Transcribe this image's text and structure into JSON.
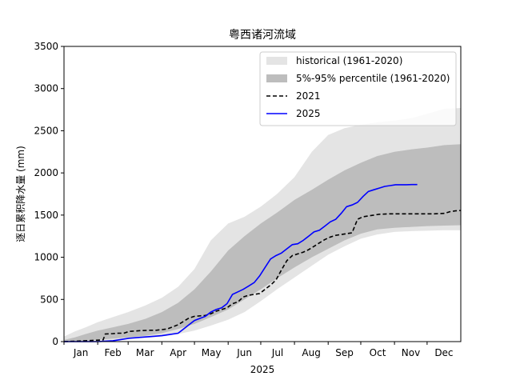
{
  "chart_data": {
    "type": "area",
    "title": "粤西诸河流域",
    "xlabel": "2025",
    "ylabel": "逐日累积降水量 (mm)",
    "ylim": [
      0,
      3500
    ],
    "xlim": [
      0,
      365
    ],
    "yticks": [
      0,
      500,
      1000,
      1500,
      2000,
      2500,
      3000,
      3500
    ],
    "month_labels": [
      "Jan",
      "Feb",
      "Mar",
      "Apr",
      "May",
      "Jun",
      "Jul",
      "Aug",
      "Sep",
      "Oct",
      "Nov",
      "Dec"
    ],
    "month_starts": [
      0,
      31,
      59,
      90,
      120,
      151,
      181,
      212,
      243,
      273,
      304,
      334
    ],
    "legend_position": "top-right",
    "series": [
      {
        "name": "historical (1961-2020)",
        "kind": "band",
        "color": "#e4e4e4",
        "x": [
          0,
          10,
          20,
          31,
          45,
          59,
          75,
          90,
          105,
          120,
          135,
          151,
          166,
          181,
          196,
          212,
          228,
          243,
          258,
          273,
          288,
          304,
          320,
          334,
          350,
          365
        ],
        "lower": [
          0,
          0,
          5,
          10,
          20,
          30,
          45,
          60,
          90,
          130,
          190,
          260,
          350,
          480,
          620,
          760,
          900,
          1030,
          1130,
          1220,
          1270,
          1300,
          1310,
          1315,
          1320,
          1320
        ],
        "upper": [
          60,
          120,
          170,
          230,
          290,
          350,
          430,
          520,
          650,
          860,
          1200,
          1400,
          1480,
          1600,
          1750,
          1950,
          2250,
          2450,
          2530,
          2570,
          2600,
          2620,
          2650,
          2700,
          2760,
          2770
        ]
      },
      {
        "name": "5%-95% percentile (1961-2020)",
        "kind": "band",
        "color": "#bdbdbd",
        "x": [
          0,
          10,
          20,
          31,
          45,
          59,
          75,
          90,
          105,
          120,
          135,
          151,
          166,
          181,
          196,
          212,
          228,
          243,
          258,
          273,
          288,
          304,
          320,
          334,
          350,
          365
        ],
        "lower": [
          0,
          0,
          10,
          20,
          35,
          50,
          70,
          100,
          150,
          210,
          290,
          380,
          500,
          620,
          750,
          880,
          1000,
          1100,
          1200,
          1280,
          1330,
          1350,
          1360,
          1370,
          1375,
          1380
        ],
        "upper": [
          20,
          50,
          90,
          130,
          170,
          210,
          270,
          350,
          460,
          620,
          830,
          1080,
          1250,
          1400,
          1530,
          1680,
          1800,
          1920,
          2030,
          2120,
          2200,
          2250,
          2280,
          2300,
          2330,
          2340
        ]
      },
      {
        "name": "2021",
        "kind": "line",
        "style": "dashed",
        "color": "#000000",
        "x": [
          0,
          10,
          20,
          36,
          38,
          45,
          50,
          55,
          60,
          70,
          80,
          85,
          95,
          105,
          110,
          115,
          120,
          130,
          135,
          140,
          145,
          150,
          155,
          160,
          165,
          170,
          175,
          180,
          185,
          190,
          195,
          200,
          205,
          210,
          215,
          220,
          225,
          230,
          235,
          240,
          245,
          250,
          255,
          260,
          265,
          270,
          275,
          280,
          285,
          290,
          300,
          310,
          320,
          330,
          340,
          350,
          355,
          360,
          365
        ],
        "y": [
          0,
          5,
          10,
          20,
          90,
          95,
          100,
          100,
          120,
          130,
          135,
          135,
          150,
          200,
          240,
          280,
          300,
          310,
          330,
          360,
          380,
          400,
          450,
          470,
          530,
          550,
          560,
          570,
          620,
          670,
          730,
          850,
          960,
          1020,
          1040,
          1060,
          1090,
          1130,
          1170,
          1210,
          1240,
          1260,
          1270,
          1280,
          1290,
          1450,
          1480,
          1490,
          1500,
          1510,
          1515,
          1515,
          1515,
          1515,
          1515,
          1520,
          1540,
          1550,
          1555
        ]
      },
      {
        "name": "2025",
        "kind": "line",
        "style": "solid",
        "color": "#0000ff",
        "x": [
          0,
          20,
          31,
          45,
          50,
          60,
          70,
          80,
          90,
          95,
          105,
          110,
          115,
          120,
          130,
          135,
          140,
          145,
          150,
          155,
          160,
          165,
          170,
          175,
          180,
          185,
          190,
          195,
          200,
          205,
          210,
          215,
          220,
          225,
          230,
          235,
          240,
          245,
          250,
          255,
          260,
          265,
          270,
          275,
          280,
          285,
          290,
          295,
          300,
          305,
          310,
          315,
          320,
          325
        ],
        "y": [
          0,
          0,
          0,
          10,
          20,
          40,
          50,
          60,
          70,
          80,
          100,
          150,
          200,
          250,
          300,
          350,
          380,
          400,
          450,
          560,
          590,
          620,
          660,
          700,
          780,
          880,
          980,
          1020,
          1050,
          1100,
          1150,
          1160,
          1200,
          1250,
          1300,
          1320,
          1370,
          1420,
          1450,
          1520,
          1600,
          1620,
          1650,
          1720,
          1780,
          1800,
          1820,
          1840,
          1850,
          1860,
          1860,
          1860,
          1862,
          1862
        ]
      }
    ]
  }
}
